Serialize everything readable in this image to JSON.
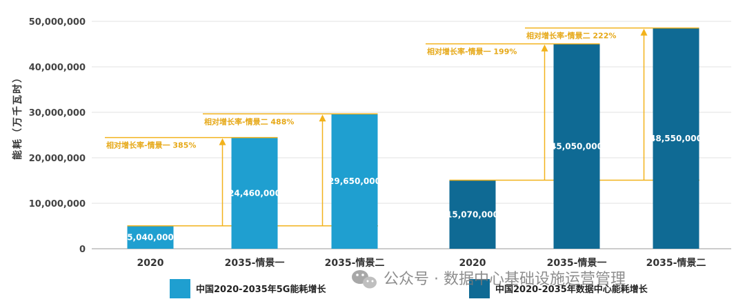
{
  "chart_data": {
    "type": "bar",
    "ylabel": "能耗（万千瓦时）",
    "ylim": [
      0,
      50000000
    ],
    "yticks": [
      0,
      10000000,
      20000000,
      30000000,
      40000000,
      50000000
    ],
    "ytick_labels": [
      "0",
      "10,000,000",
      "20,000,000",
      "30,000,000",
      "40,000,000",
      "50,000,000"
    ],
    "grid": true,
    "categories": [
      "2020",
      "2035-情景一",
      "2035-情景二",
      "2020",
      "2035-情景一",
      "2035-情景二"
    ],
    "series": [
      {
        "name": "中国2020-2035年5G能耗增长",
        "color": "#1f9fd0",
        "values": [
          5040000,
          24460000,
          29650000,
          null,
          null,
          null
        ],
        "value_labels": [
          "5,040,000",
          "24,460,000",
          "29,650,000"
        ]
      },
      {
        "name": "中国2020-2035年数据中心能耗增长",
        "color": "#0f6a94",
        "values": [
          null,
          null,
          null,
          15070000,
          45050000,
          48550000
        ],
        "value_labels": [
          "15,070,000",
          "45,050,000",
          "48,550,000"
        ]
      }
    ],
    "annotations": [
      {
        "group": 0,
        "target_index": 1,
        "text": "相对增长率-情景一  385%"
      },
      {
        "group": 0,
        "target_index": 2,
        "text": "相对增长率-情景二  488%"
      },
      {
        "group": 1,
        "target_index": 4,
        "text": "相对增长率-情景一  199%"
      },
      {
        "group": 1,
        "target_index": 5,
        "text": "相对增长率-情景二  222%"
      }
    ],
    "annotation_color": "#f2b21b",
    "legend_position": "bottom"
  },
  "watermark": {
    "text": "公众号 · 数据中心基础设施运营管理",
    "icon": "wechat-icon"
  }
}
